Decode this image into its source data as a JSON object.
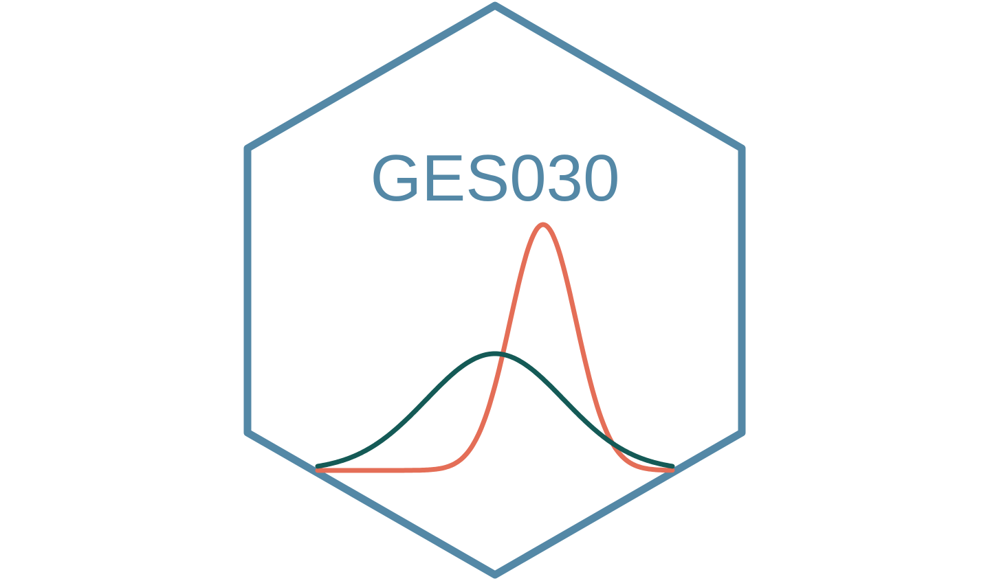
{
  "logo": {
    "title": "GES030",
    "colors": {
      "hexagon": "#5488A6",
      "title": "#5488A6",
      "narrow_curve": "#E46E57",
      "wide_curve": "#145A56",
      "background": "#FFFFFF"
    },
    "icons": [
      "hexagon-outline",
      "narrow-bell-curve",
      "wide-bell-curve"
    ]
  }
}
